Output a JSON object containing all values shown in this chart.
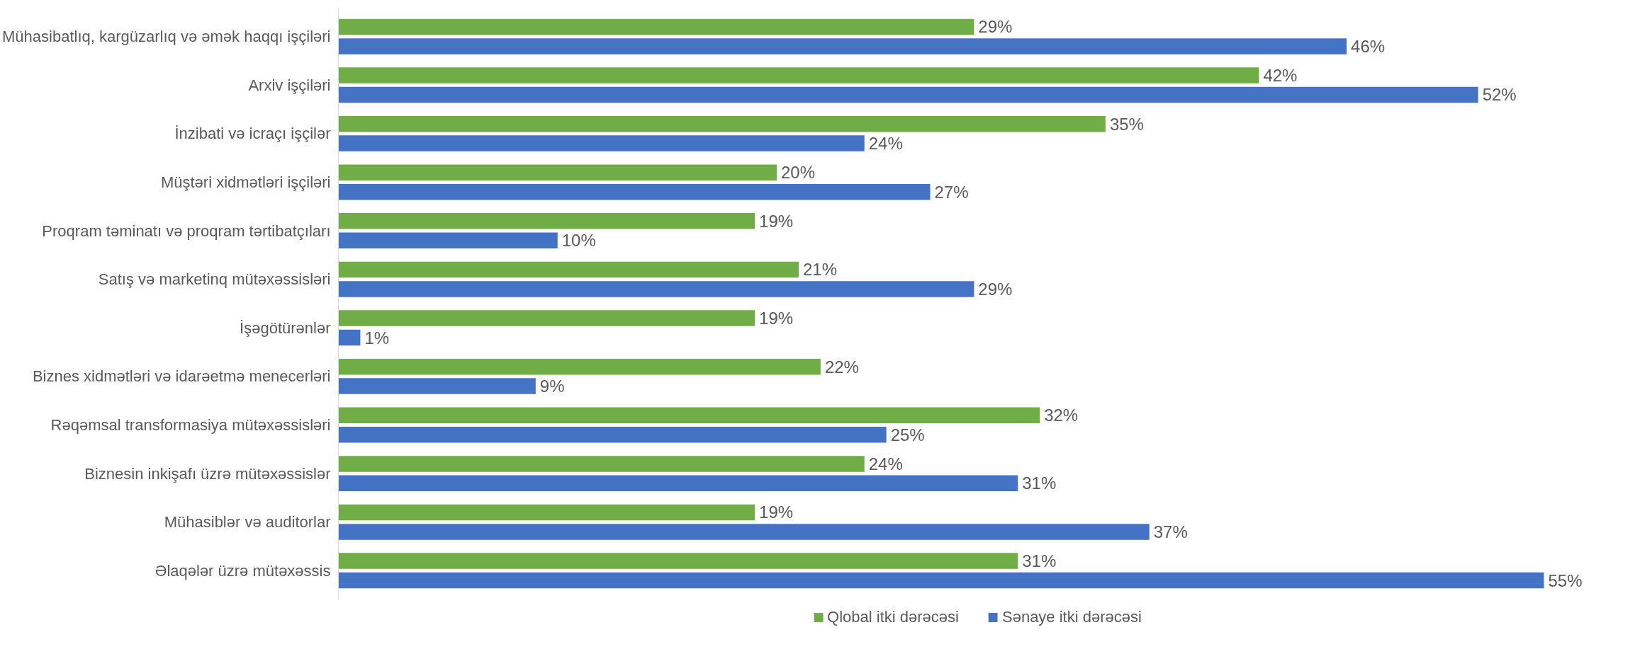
{
  "chart_data": {
    "type": "bar",
    "orientation": "horizontal",
    "categories": [
      "Mühasibatlıq, kargüzarlıq və əmək haqqı işçiləri",
      "Arxiv işçiləri",
      "İnzibati və icraçı işçilər",
      "Müştəri xidmətləri işçiləri",
      "Proqram təminatı və proqram tərtibatçıları",
      "Satış və marketinq mütəxəssisləri",
      "İşəgötürənlər",
      "Biznes xidmətləri və idarəetmə menecerləri",
      "Rəqəmsal transformasiya mütəxəssisləri",
      "Biznesin inkişafı üzrə mütəxəssislər",
      "Mühasiblər və auditorlar",
      "Əlaqələr üzrə mütəxəssis"
    ],
    "series": [
      {
        "name": "Qlobal itki dərəcəsi",
        "color": "#70ad47",
        "values": [
          29,
          42,
          35,
          20,
          19,
          21,
          19,
          22,
          32,
          24,
          19,
          31
        ],
        "value_labels": [
          "29%",
          "42%",
          "35%",
          "20%",
          "19%",
          "21%",
          "19%",
          "22%",
          "32%",
          "24%",
          "19%",
          "31%"
        ]
      },
      {
        "name": "Sənaye itki dərəcəsi",
        "color": "#4472c4",
        "values": [
          46,
          52,
          24,
          27,
          10,
          29,
          1,
          9,
          25,
          31,
          37,
          55
        ],
        "value_labels": [
          "46%",
          "52%",
          "24%",
          "27%",
          "10%",
          "29%",
          "1%",
          "9%",
          "25%",
          "31%",
          "37%",
          "55%"
        ]
      }
    ],
    "tick_labels": "y",
    "legend": "bottom",
    "grid": false
  }
}
